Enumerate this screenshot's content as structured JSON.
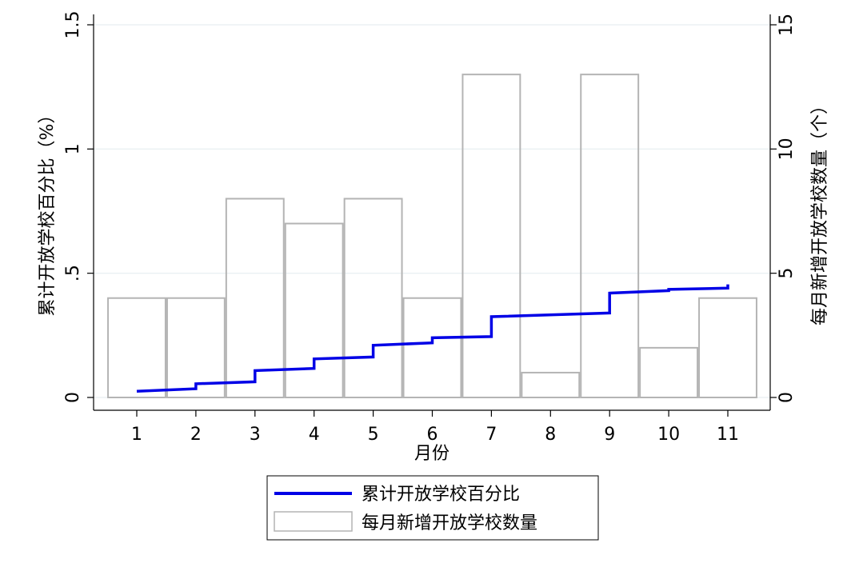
{
  "chart_data": {
    "type": "bar",
    "xlabel": "月份",
    "ylabel_left": "累计开放学校百分比（%）",
    "ylabel_right": "每月新增开放学校数量（个）",
    "categories": [
      "1",
      "2",
      "3",
      "4",
      "5",
      "6",
      "7",
      "8",
      "9",
      "10",
      "11"
    ],
    "y_left": {
      "ticks": [
        0,
        0.5,
        1,
        1.5
      ],
      "tick_labels": [
        "0",
        ".5",
        "1",
        "1.5"
      ],
      "range": [
        0,
        1.5
      ]
    },
    "y_right": {
      "ticks": [
        0,
        5,
        10,
        15
      ],
      "tick_labels": [
        "0",
        "5",
        "10",
        "15"
      ],
      "range": [
        0,
        15
      ]
    },
    "grid": true,
    "legend_position": "bottom",
    "series": [
      {
        "name": "每月新增开放学校数量",
        "kind": "bar",
        "axis": "right",
        "color": "#b4b4b4",
        "values": [
          4,
          4,
          8,
          7,
          8,
          4,
          13,
          1,
          13,
          2,
          4
        ]
      },
      {
        "name": "累计开放学校百分比",
        "kind": "step",
        "axis": "left",
        "color": "#0000e6",
        "points": [
          [
            1,
            0.025
          ],
          [
            2,
            0.035
          ],
          [
            2,
            0.055
          ],
          [
            3,
            0.063
          ],
          [
            3,
            0.108
          ],
          [
            4,
            0.117
          ],
          [
            4,
            0.155
          ],
          [
            5,
            0.163
          ],
          [
            5,
            0.21
          ],
          [
            6,
            0.22
          ],
          [
            6,
            0.24
          ],
          [
            7,
            0.245
          ],
          [
            7,
            0.325
          ],
          [
            9,
            0.34
          ],
          [
            9,
            0.42
          ],
          [
            10,
            0.43
          ],
          [
            10,
            0.435
          ],
          [
            11,
            0.44
          ],
          [
            11,
            0.455
          ]
        ]
      }
    ]
  }
}
